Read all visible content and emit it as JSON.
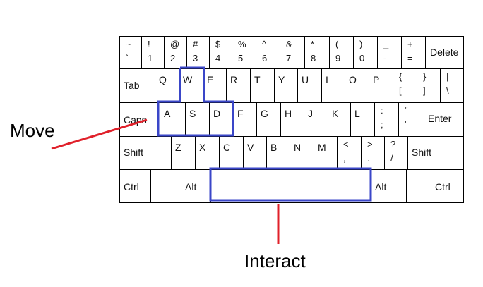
{
  "rows": [
    {
      "keys": [
        {
          "top": "~",
          "bottom": "`"
        },
        {
          "top": "!",
          "bottom": "1"
        },
        {
          "top": "@",
          "bottom": "2"
        },
        {
          "top": "#",
          "bottom": "3"
        },
        {
          "top": "$",
          "bottom": "4"
        },
        {
          "top": "%",
          "bottom": "5"
        },
        {
          "top": "^",
          "bottom": "6"
        },
        {
          "top": "&",
          "bottom": "7"
        },
        {
          "top": "*",
          "bottom": "8"
        },
        {
          "top": "(",
          "bottom": "9"
        },
        {
          "top": ")",
          "bottom": "0"
        },
        {
          "top": "_",
          "bottom": "-"
        },
        {
          "top": "+",
          "bottom": "="
        },
        {
          "label": "Delete"
        }
      ]
    },
    {
      "keys": [
        {
          "label": "Tab"
        },
        {
          "label": "Q"
        },
        {
          "label": "W"
        },
        {
          "label": "E"
        },
        {
          "label": "R"
        },
        {
          "label": "T"
        },
        {
          "label": "Y"
        },
        {
          "label": "U"
        },
        {
          "label": "I"
        },
        {
          "label": "O"
        },
        {
          "label": "P"
        },
        {
          "top": "{",
          "bottom": "["
        },
        {
          "top": "}",
          "bottom": "]"
        },
        {
          "top": "|",
          "bottom": "\\"
        }
      ]
    },
    {
      "keys": [
        {
          "label": "Caps"
        },
        {
          "label": "A"
        },
        {
          "label": "S"
        },
        {
          "label": "D"
        },
        {
          "label": "F"
        },
        {
          "label": "G"
        },
        {
          "label": "H"
        },
        {
          "label": "J"
        },
        {
          "label": "K"
        },
        {
          "label": "L"
        },
        {
          "top": ":",
          "bottom": ";"
        },
        {
          "top": "\"",
          "bottom": "'"
        },
        {
          "label": "Enter"
        }
      ]
    },
    {
      "keys": [
        {
          "label": "Shift"
        },
        {
          "label": "Z"
        },
        {
          "label": "X"
        },
        {
          "label": "C"
        },
        {
          "label": "V"
        },
        {
          "label": "B"
        },
        {
          "label": "N"
        },
        {
          "label": "M"
        },
        {
          "top": "<",
          "bottom": ","
        },
        {
          "top": ">",
          "bottom": "."
        },
        {
          "top": "?",
          "bottom": "/"
        },
        {
          "label": "Shift"
        }
      ]
    },
    {
      "keys": [
        {
          "label": "Ctrl"
        },
        {
          "label": ""
        },
        {
          "label": "Alt"
        },
        {
          "label": ""
        },
        {
          "label": "Alt"
        },
        {
          "label": ""
        },
        {
          "label": "Ctrl"
        }
      ]
    }
  ],
  "annotations": {
    "move_label": "Move",
    "interact_label": "Interact",
    "highlight_color": "#3a46c8",
    "arrow_color": "#e0202a"
  }
}
